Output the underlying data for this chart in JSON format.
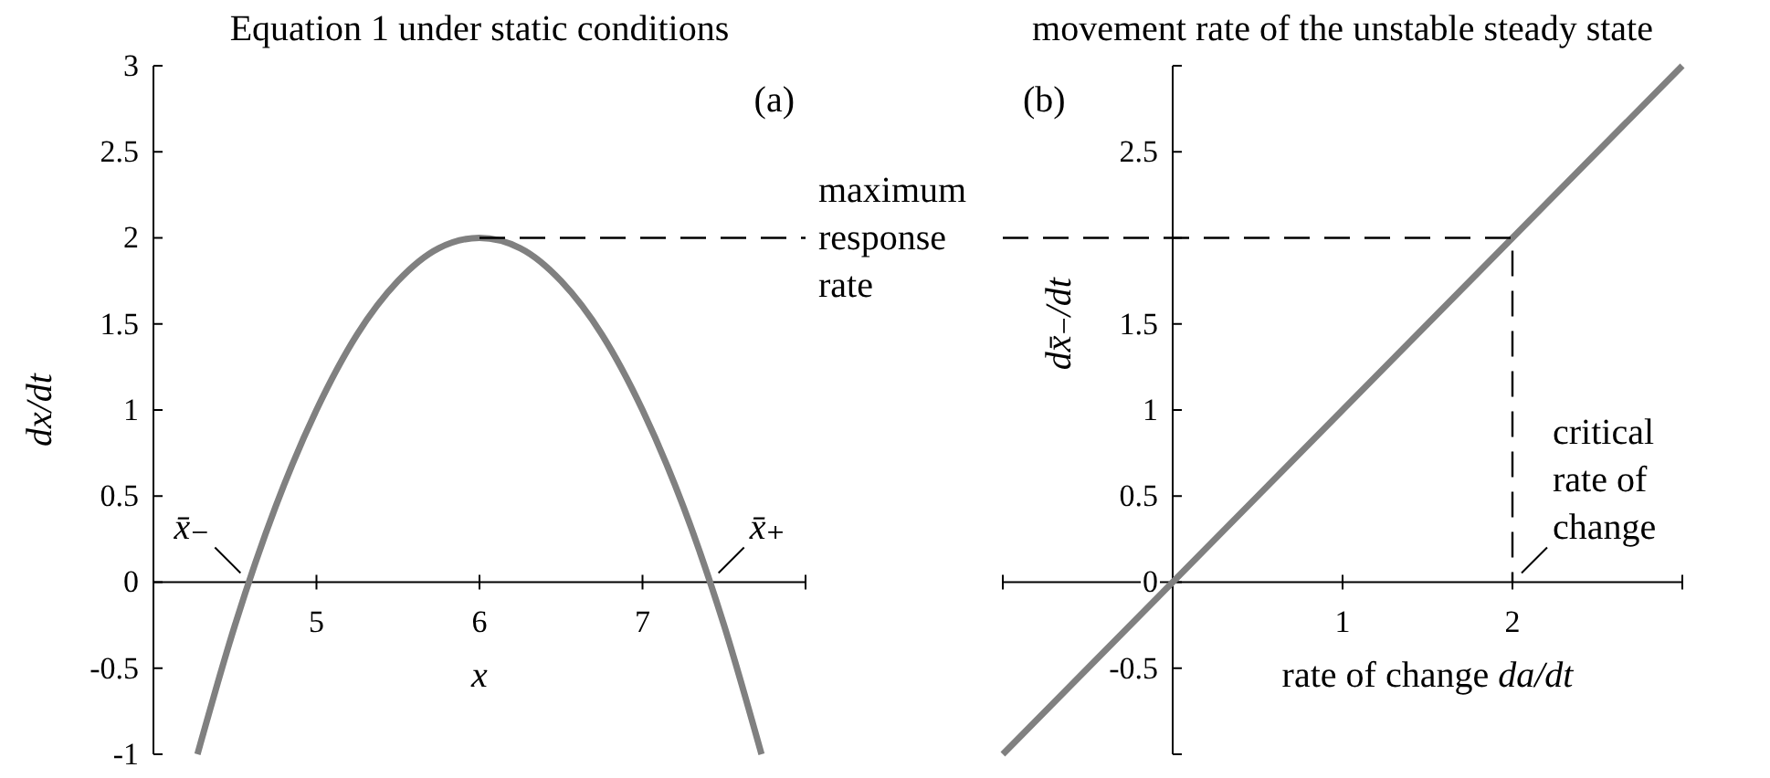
{
  "chart_data": [
    {
      "type": "line",
      "title": "Equation 1 under static conditions",
      "xlabel": "x",
      "ylabel": "dx/dt",
      "xlim": [
        4,
        8
      ],
      "ylim": [
        -1,
        3
      ],
      "xticks": [
        5,
        6,
        7,
        {
          "value": 8,
          "label": null
        }
      ],
      "yticks": [
        -1,
        -0.5,
        0,
        0.5,
        1,
        1.5,
        2,
        2.5,
        3
      ],
      "series": [
        {
          "color": "#808080",
          "line_style": "solid",
          "x": [
            4.27,
            4.5,
            4.75,
            5,
            5.25,
            5.5,
            5.75,
            6,
            6.25,
            6.5,
            6.75,
            7,
            7.25,
            7.5,
            7.73
          ],
          "values": [
            -1,
            -0.25,
            0.44,
            1,
            1.44,
            1.75,
            1.94,
            2,
            1.94,
            1.75,
            1.44,
            1,
            0.44,
            -0.25,
            -1
          ]
        },
        {
          "name": "maximum response rate",
          "color": "#000000",
          "line_style": "dashed",
          "x": [
            6,
            8
          ],
          "values": [
            2,
            2
          ]
        }
      ],
      "annotations": [
        "(a)",
        {
          "text": "x̄₋",
          "x": 4.59,
          "y": 0
        },
        {
          "text": "x̄₊",
          "x": 7.41,
          "y": 0
        }
      ]
    },
    {
      "type": "line",
      "title": "movement rate of the unstable steady state",
      "xlabel": "rate of change da/dt",
      "ylabel": "dx̄₋/dt",
      "xlim": [
        -1,
        3
      ],
      "ylim": [
        -1,
        3
      ],
      "xticks": [
        {
          "value": -1,
          "label": null
        },
        1,
        2,
        {
          "value": 3,
          "label": null
        }
      ],
      "yticks": [
        {
          "value": -1,
          "label": null
        },
        -0.5,
        0,
        0.5,
        1,
        1.5,
        {
          "value": 2,
          "label": null
        },
        2.5,
        {
          "value": 3,
          "label": null
        }
      ],
      "series": [
        {
          "color": "#808080",
          "line_style": "solid",
          "x": [
            -1,
            0,
            1,
            2,
            3
          ],
          "values": [
            -1,
            0,
            1,
            2,
            3
          ]
        },
        {
          "color": "#000000",
          "line_style": "dashed",
          "x": [
            -1,
            2,
            2
          ],
          "values": [
            2,
            2,
            0
          ]
        }
      ],
      "annotations": [
        "(b)",
        {
          "text": "critical rate of change",
          "x": 2,
          "y": 0
        }
      ]
    }
  ]
}
